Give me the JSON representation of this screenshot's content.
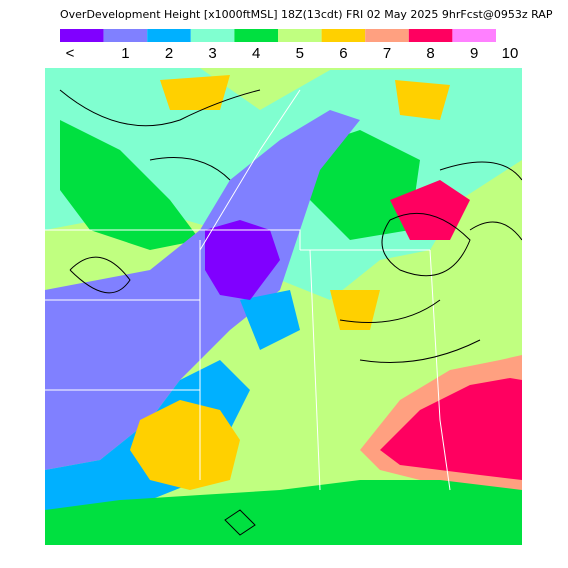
{
  "header": {
    "title": "OverDevelopment Height [x1000ftMSL] 18Z(13cdt) FRI 02 May 2025 9hrFcst@0953z RAP"
  },
  "legend": {
    "colors": [
      "#8000ff",
      "#8080ff",
      "#00b0ff",
      "#80ffd0",
      "#00e040",
      "#c0ff80",
      "#ffd000",
      "#ffa080",
      "#ff0060",
      "#ff80ff"
    ],
    "labels": [
      "<",
      "1",
      "2",
      "3",
      "4",
      "5",
      "6",
      "7",
      "8",
      "9",
      "10"
    ]
  }
}
